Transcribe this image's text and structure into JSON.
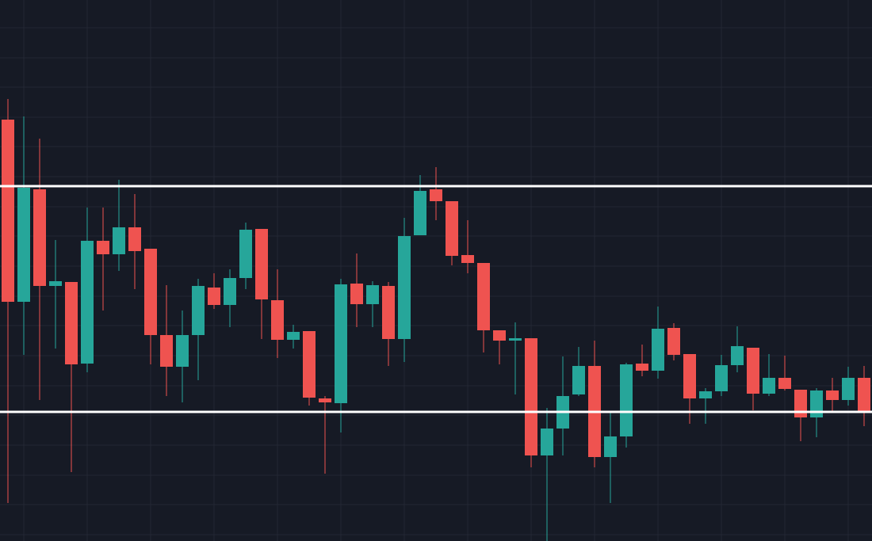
{
  "chart_data": {
    "type": "candlestick",
    "categories": [
      null,
      null,
      null,
      null,
      null,
      null,
      null,
      null,
      null,
      null,
      null,
      null,
      null,
      null,
      null,
      null,
      null,
      null,
      null,
      null,
      null,
      null,
      null,
      null,
      null,
      null,
      null,
      null,
      null,
      null,
      null,
      null,
      null,
      null,
      null,
      null,
      null,
      null,
      null,
      null,
      null,
      null,
      null,
      null,
      null,
      null,
      null,
      null,
      null,
      null,
      null,
      null,
      null,
      null,
      null
    ],
    "open": [
      532,
      302,
      444,
      322,
      327,
      224,
      379,
      362,
      396,
      369,
      260,
      220,
      260,
      320,
      298,
      332,
      394,
      304,
      254,
      265,
      180,
      174,
      325,
      299,
      322,
      255,
      386,
      444,
      429,
      361,
      351,
      266,
      253,
      256,
      108,
      142,
      185,
      221,
      106,
      132,
      224,
      215,
      269,
      236,
      180,
      189,
      222,
      244,
      186,
      206,
      191,
      156,
      190,
      178,
      206
    ],
    "high": [
      558,
      536,
      508,
      380,
      327,
      421,
      421,
      456,
      438,
      369,
      323,
      291,
      331,
      338,
      343,
      402,
      394,
      343,
      273,
      265,
      183,
      331,
      363,
      328,
      327,
      408,
      462,
      472,
      429,
      405,
      351,
      266,
      276,
      256,
      168,
      233,
      245,
      253,
      163,
      225,
      248,
      296,
      275,
      236,
      193,
      235,
      271,
      244,
      236,
      234,
      191,
      193,
      206,
      220,
      221
    ],
    "low": [
      48,
      235,
      178,
      243,
      87,
      213,
      291,
      341,
      318,
      223,
      183,
      175,
      203,
      293,
      270,
      318,
      255,
      231,
      243,
      171,
      85,
      137,
      270,
      270,
      221,
      226,
      386,
      405,
      348,
      338,
      238,
      223,
      185,
      93,
      0,
      108,
      183,
      93,
      48,
      118,
      208,
      205,
      228,
      148,
      148,
      183,
      213,
      165,
      183,
      190,
      126,
      131,
      163,
      171,
      145
    ],
    "close": [
      302,
      446,
      322,
      328,
      223,
      379,
      362,
      396,
      366,
      260,
      220,
      260,
      322,
      298,
      332,
      393,
      305,
      254,
      264,
      181,
      175,
      324,
      299,
      323,
      255,
      385,
      442,
      429,
      360,
      351,
      266,
      253,
      256,
      108,
      142,
      183,
      221,
      106,
      132,
      223,
      215,
      268,
      235,
      180,
      189,
      222,
      246,
      186,
      206,
      192,
      156,
      190,
      178,
      206,
      163
    ],
    "up_color": "#26a69a",
    "down_color": "#ef5350",
    "levels": [
      448,
      163
    ],
    "level_color": "#ffffff",
    "ylim": [
      0,
      683
    ],
    "yticks": [
      648,
      610,
      573,
      535,
      498,
      460,
      422,
      385,
      347,
      309,
      272,
      234,
      196,
      159,
      121,
      83,
      46,
      8
    ],
    "grid": true,
    "grid_color": "#232733"
  }
}
